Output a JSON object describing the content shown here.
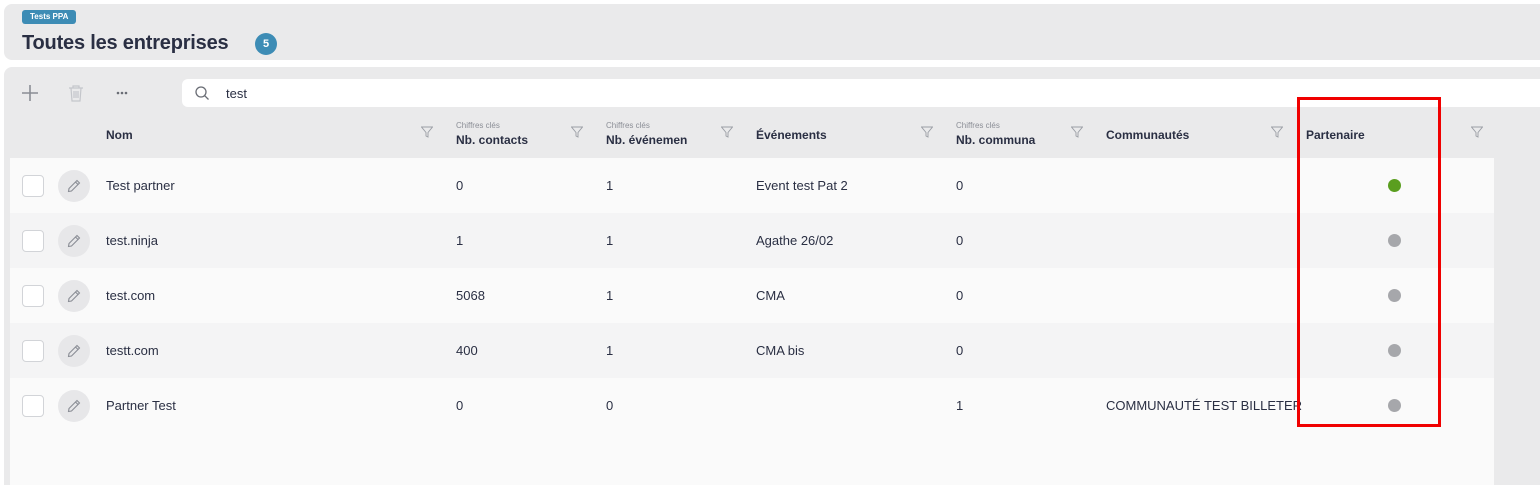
{
  "header": {
    "tag": "Tests PPA",
    "title": "Toutes les entreprises",
    "count": "5"
  },
  "toolbar": {
    "add_icon": "plus-icon",
    "delete_icon": "trash-icon",
    "more_icon": "ellipsis-icon"
  },
  "search": {
    "icon": "search-icon",
    "value": "test"
  },
  "columns": [
    {
      "group": "",
      "label": "Nom"
    },
    {
      "group": "Chiffres clés",
      "label": "Nb. contacts"
    },
    {
      "group": "Chiffres clés",
      "label": "Nb. événemen"
    },
    {
      "group": "",
      "label": "Événements"
    },
    {
      "group": "Chiffres clés",
      "label": "Nb. communa"
    },
    {
      "group": "",
      "label": "Communautés"
    },
    {
      "group": "",
      "label": "Partenaire"
    }
  ],
  "rows": [
    {
      "nom": "Test partner",
      "contacts": "0",
      "evenements_count": "1",
      "evenements": "Event test Pat 2",
      "communautes_count": "0",
      "communautes": "",
      "partenaire": true
    },
    {
      "nom": "test.ninja",
      "contacts": "1",
      "evenements_count": "1",
      "evenements": "Agathe 26/02",
      "communautes_count": "0",
      "communautes": "",
      "partenaire": false
    },
    {
      "nom": "test.com",
      "contacts": "5068",
      "evenements_count": "1",
      "evenements": "CMA",
      "communautes_count": "0",
      "communautes": "",
      "partenaire": false
    },
    {
      "nom": "testt.com",
      "contacts": "400",
      "evenements_count": "1",
      "evenements": "CMA bis",
      "communautes_count": "0",
      "communautes": "",
      "partenaire": false
    },
    {
      "nom": "Partner Test",
      "contacts": "0",
      "evenements_count": "0",
      "evenements": "",
      "communautes_count": "1",
      "communautes": "COMMUNAUTÉ TEST BILLETER",
      "partenaire": false
    }
  ],
  "colors": {
    "partner_true": "#5a9e1f",
    "partner_false": "#a6a7ab",
    "accent": "#3d8cb5",
    "highlight": "#f00000"
  }
}
